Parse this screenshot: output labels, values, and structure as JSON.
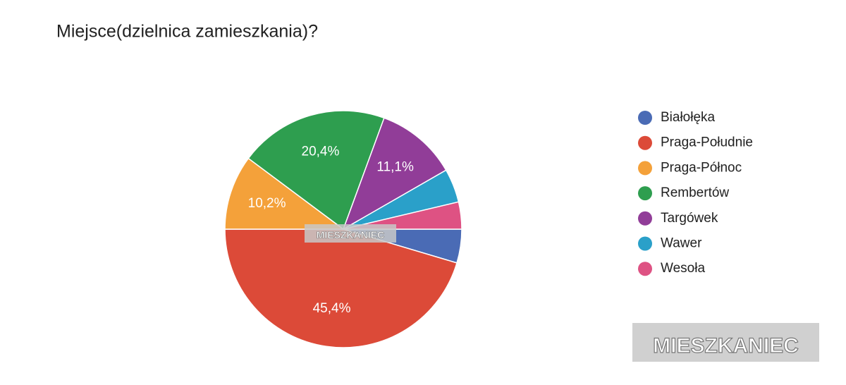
{
  "chart_data": {
    "type": "pie",
    "title": "Miejsce(dzielnica zamieszkania)?",
    "categories": [
      "Białołęka",
      "Praga-Południe",
      "Praga-Północ",
      "Rembertów",
      "Targówek",
      "Wawer",
      "Wesoła"
    ],
    "values": [
      4.6,
      45.4,
      10.2,
      20.4,
      11.1,
      4.6,
      3.7
    ],
    "value_labels": [
      null,
      "45,4%",
      "10,2%",
      "20,4%",
      "11,1%",
      null,
      null
    ],
    "colors": [
      "#4a6bb5",
      "#dc4a38",
      "#f4a13a",
      "#2e9e4f",
      "#913d98",
      "#2aa0c9",
      "#de5283"
    ],
    "legend": "right",
    "watermark": "MIESZKANIEC"
  }
}
